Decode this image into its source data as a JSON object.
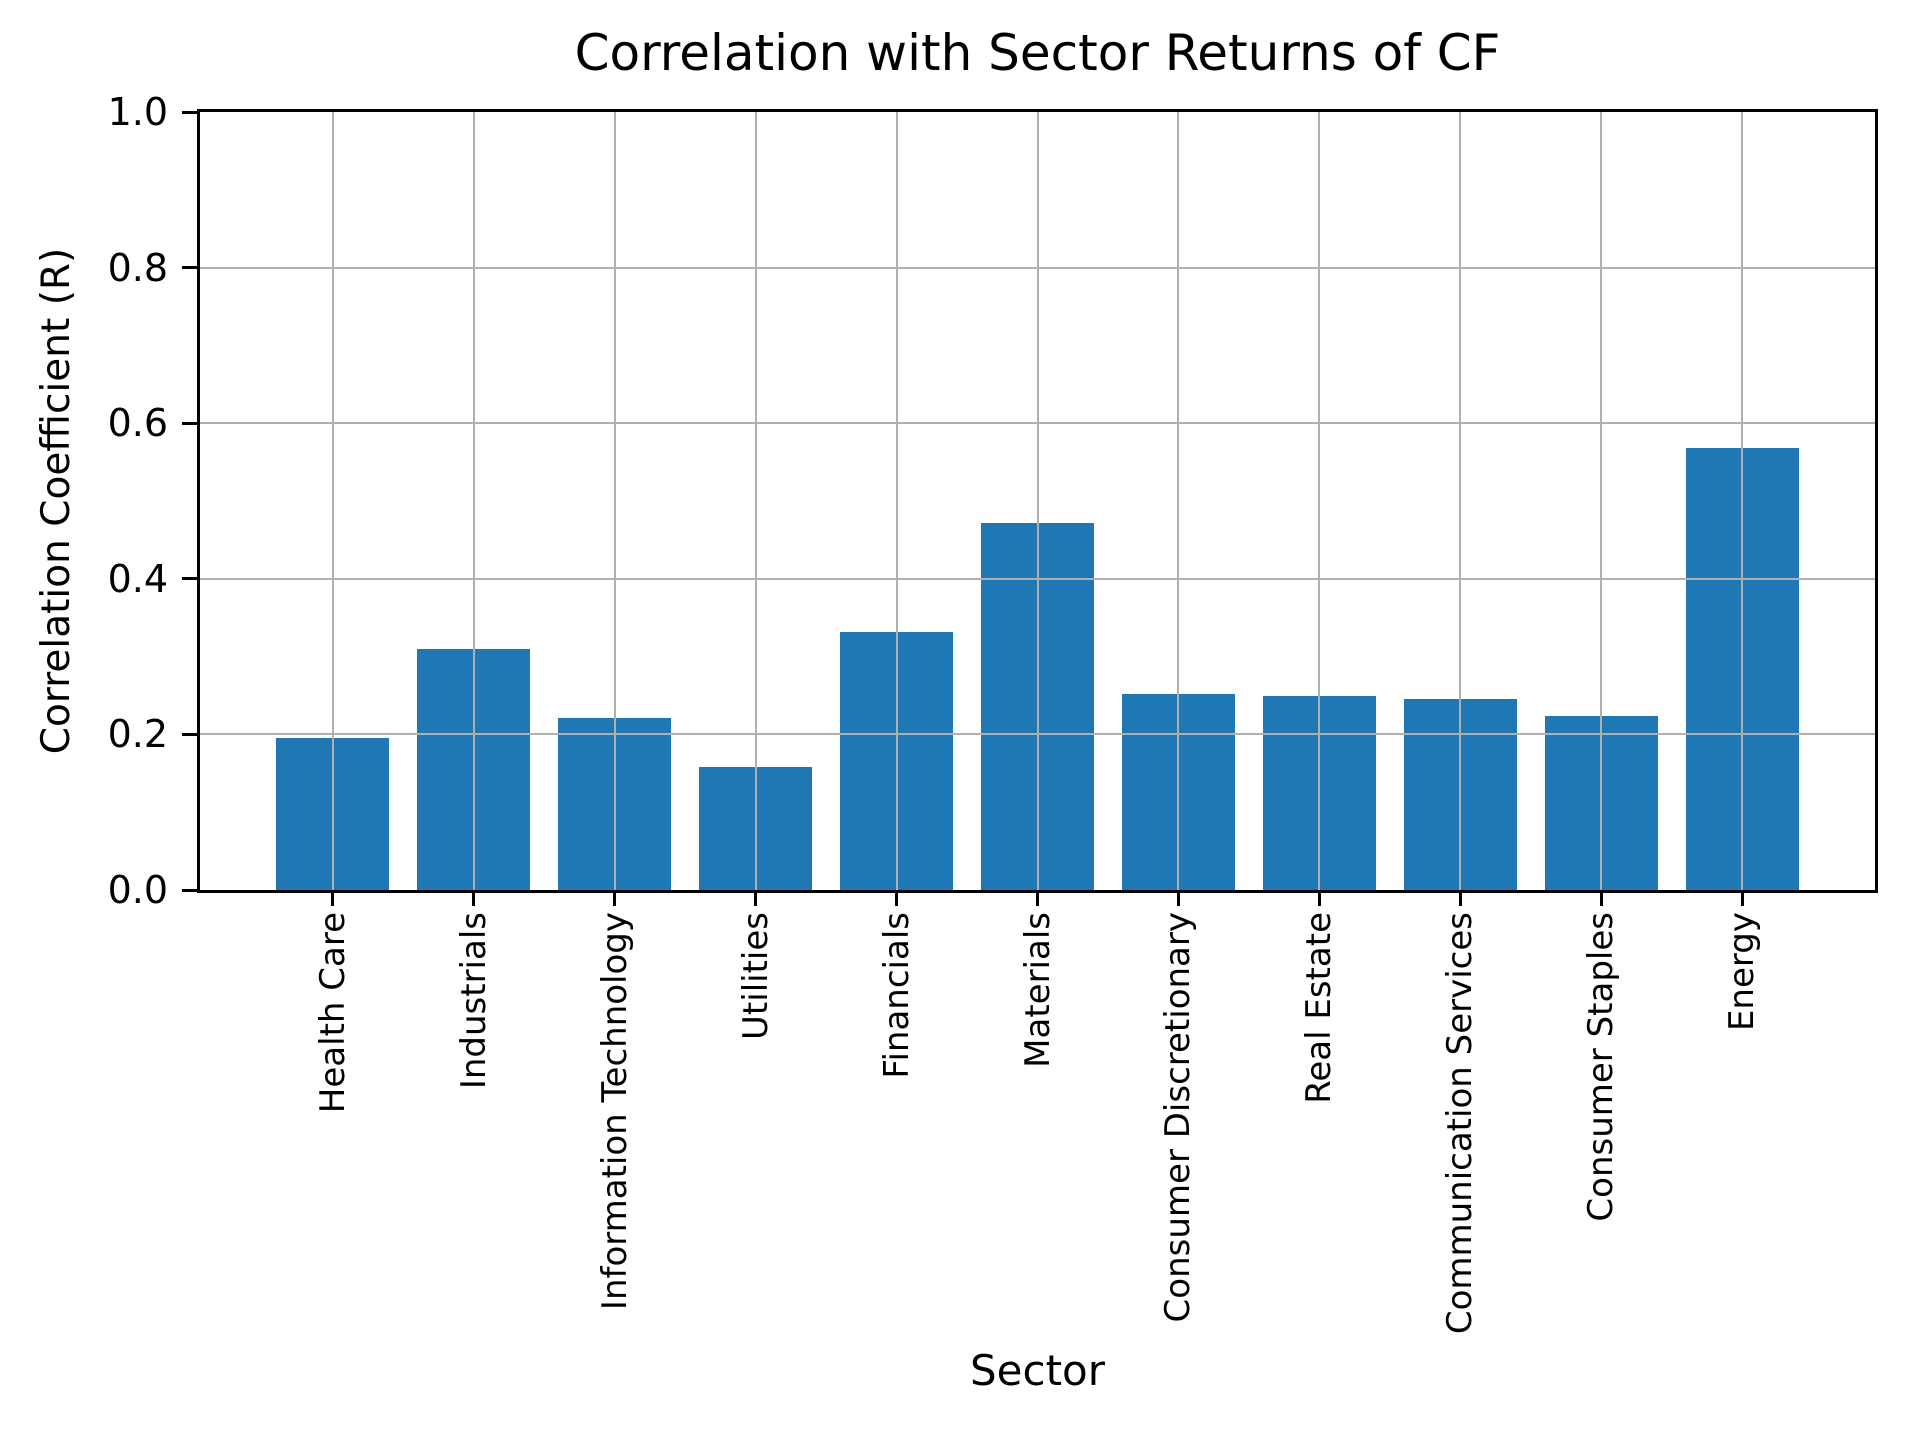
{
  "chart_data": {
    "type": "bar",
    "title": "Correlation with Sector Returns of CF",
    "xlabel": "Sector",
    "ylabel": "Correlation Coefficient (R)",
    "categories": [
      "Health Care",
      "Industrials",
      "Information Technology",
      "Utilities",
      "Financials",
      "Materials",
      "Consumer Discretionary",
      "Real Estate",
      "Communication Services",
      "Consumer Staples",
      "Energy"
    ],
    "values": [
      0.195,
      0.31,
      0.221,
      0.158,
      0.332,
      0.472,
      0.252,
      0.249,
      0.245,
      0.224,
      0.568
    ],
    "ylim": [
      0.0,
      1.0
    ],
    "yticks": [
      0.0,
      0.2,
      0.4,
      0.6,
      0.8,
      1.0
    ],
    "ytick_labels": [
      "0.0",
      "0.2",
      "0.4",
      "0.6",
      "0.8",
      "1.0"
    ],
    "grid": true,
    "legend": "none",
    "bar_color": "#1f77b4",
    "grid_color": "#b0b0b0"
  }
}
